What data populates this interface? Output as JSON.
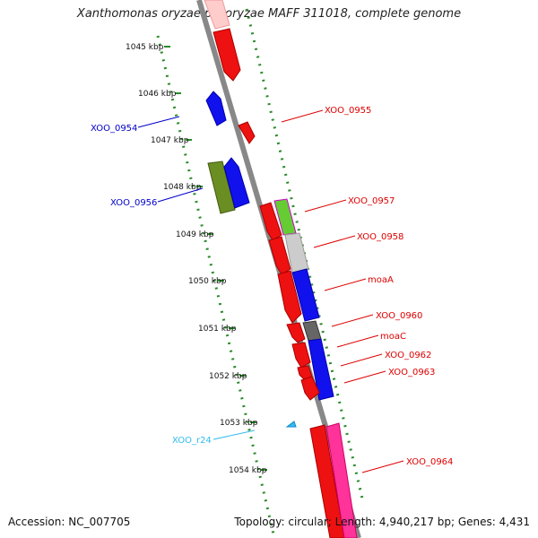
{
  "header": {
    "title": "Xanthomonas oryzae pv. oryzae MAFF 311018, complete genome"
  },
  "footer": {
    "accession": "Accession: NC_007705",
    "summary": "Topology: circular; Length: 4,940,217 bp; Genes: 4,431"
  },
  "diagram": {
    "scale_unit": "kbp",
    "scale_ticks": [
      "1045 kbp",
      "1046 kbp",
      "1047 kbp",
      "1048 kbp",
      "1049 kbp",
      "1050 kbp",
      "1051 kbp",
      "1052 kbp",
      "1053 kbp",
      "1054 kbp"
    ],
    "gene_labels_left": [
      {
        "name": "XOO_0954",
        "color": "#0000cc"
      },
      {
        "name": "XOO_0956",
        "color": "#0000cc"
      },
      {
        "name": "XOO_r24",
        "color": "#33bbee"
      }
    ],
    "gene_labels_right": [
      {
        "name": "XOO_0955",
        "color": "#dd0000"
      },
      {
        "name": "XOO_0957",
        "color": "#dd0000"
      },
      {
        "name": "XOO_0958",
        "color": "#dd0000"
      },
      {
        "name": "moaA",
        "color": "#dd0000"
      },
      {
        "name": "XOO_0960",
        "color": "#dd0000"
      },
      {
        "name": "moaC",
        "color": "#dd0000"
      },
      {
        "name": "XOO_0962",
        "color": "#dd0000"
      },
      {
        "name": "XOO_0963",
        "color": "#dd0000"
      },
      {
        "name": "XOO_0964",
        "color": "#dd0000"
      }
    ],
    "colors": {
      "backbone": "#888888",
      "dots": "#2a8a2a",
      "forward_gene": "#ee1111",
      "reverse_gene": "#1111ee",
      "olive_gene": "#6b8e23",
      "pink_gene": "#ff3399",
      "trna": "#33bbee"
    }
  }
}
